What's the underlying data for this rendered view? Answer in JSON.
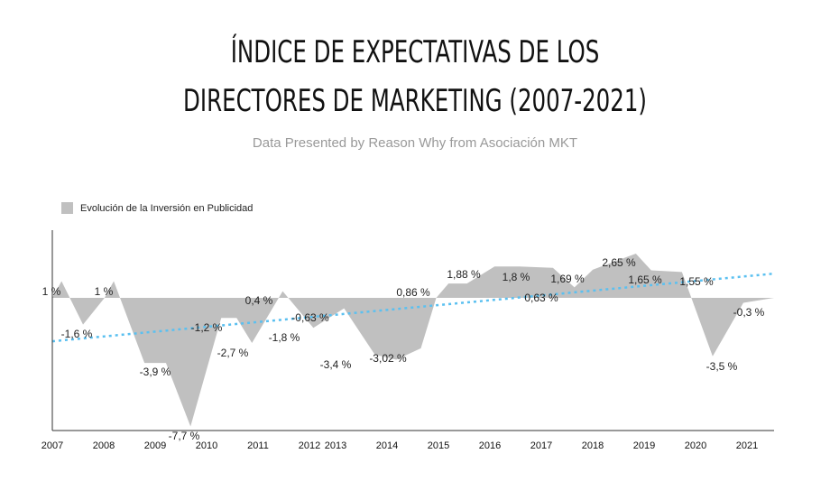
{
  "title_line1": "ÍNDICE DE EXPECTATIVAS DE LOS",
  "title_line2": "DIRECTORES DE MARKETING (2007-2021)",
  "subtitle": "Data Presented by Reason Why from Asociación MKT",
  "legend_label": "Evolución de la Inversión en Publicidad",
  "colors": {
    "area": "#c0c0c0",
    "trend": "#5bc0f0",
    "axis": "#333333"
  },
  "chart_data": {
    "type": "area",
    "x_tick_labels": [
      "2007",
      "2008",
      "2009",
      "2010",
      "2011",
      "2012",
      "2013",
      "2014",
      "2015",
      "2016",
      "2017",
      "2018",
      "2019",
      "2020",
      "2021"
    ],
    "series": [
      {
        "name": "Evolución de la Inversión en Publicidad",
        "points": [
          {
            "x": 2007.0,
            "y": 0.0,
            "label": ""
          },
          {
            "x": 2007.15,
            "y": 1.0,
            "label": "1 %"
          },
          {
            "x": 2007.5,
            "y": -1.6,
            "label": "-1,6 %"
          },
          {
            "x": 2007.85,
            "y": 0.0,
            "label": ""
          },
          {
            "x": 2008.0,
            "y": 1.0,
            "label": "1 %"
          },
          {
            "x": 2008.5,
            "y": -3.9,
            "label": "-3,9 %"
          },
          {
            "x": 2008.85,
            "y": -3.9,
            "label": ""
          },
          {
            "x": 2009.25,
            "y": -7.7,
            "label": "-7,7 %"
          },
          {
            "x": 2009.75,
            "y": -1.2,
            "label": "-1,2 %"
          },
          {
            "x": 2010.0,
            "y": -1.2,
            "label": ""
          },
          {
            "x": 2010.25,
            "y": -2.7,
            "label": "-2,7 %"
          },
          {
            "x": 2010.75,
            "y": 0.4,
            "label": "0,4 %"
          },
          {
            "x": 2011.25,
            "y": -1.8,
            "label": "-1,8 %"
          },
          {
            "x": 2011.75,
            "y": -0.63,
            "label": "-0,63 %"
          },
          {
            "x": 2012.25,
            "y": -3.4,
            "label": "-3,4 %"
          },
          {
            "x": 2012.6,
            "y": -3.7,
            "label": ""
          },
          {
            "x": 2013.0,
            "y": -3.02,
            "label": "-3,02 %"
          },
          {
            "x": 2013.25,
            "y": 0.0,
            "label": ""
          },
          {
            "x": 2013.45,
            "y": 0.86,
            "label": "0,86 %"
          },
          {
            "x": 2013.75,
            "y": 0.86,
            "label": ""
          },
          {
            "x": 2014.2,
            "y": 1.88,
            "label": "1,88 %"
          },
          {
            "x": 2014.6,
            "y": 1.88,
            "label": ""
          },
          {
            "x": 2015.15,
            "y": 1.8,
            "label": "1,8 %"
          },
          {
            "x": 2015.5,
            "y": 0.63,
            "label": "0,63 %"
          },
          {
            "x": 2015.8,
            "y": 1.69,
            "label": "1,69 %"
          },
          {
            "x": 2016.5,
            "y": 2.65,
            "label": "2,65 %"
          },
          {
            "x": 2016.75,
            "y": 1.65,
            "label": "1,65 %"
          },
          {
            "x": 2017.25,
            "y": 1.55,
            "label": "1,55 %"
          },
          {
            "x": 2017.75,
            "y": -3.5,
            "label": "-3,5 %"
          },
          {
            "x": 2018.25,
            "y": -0.3,
            "label": "-0,3 %"
          },
          {
            "x": 2018.75,
            "y": 0.0,
            "label": ""
          }
        ]
      }
    ],
    "trend_line": {
      "start": -2.6,
      "end": 1.45
    },
    "ylim": [
      -8,
      4
    ],
    "grid": false,
    "legend_position": "top-left"
  }
}
